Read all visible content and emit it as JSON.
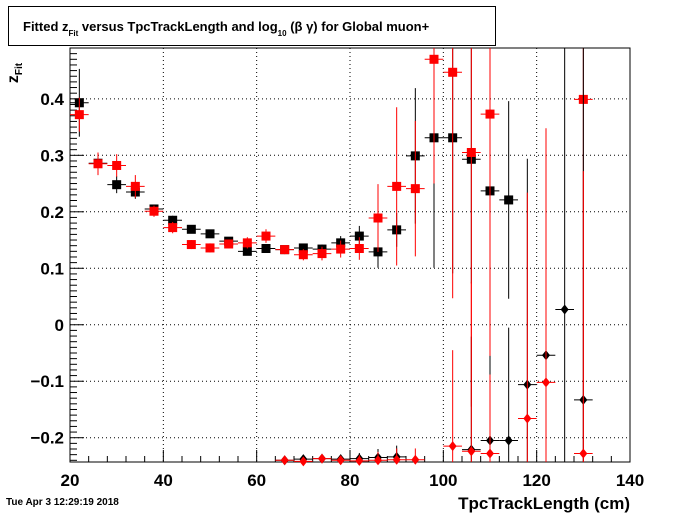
{
  "title": {
    "prefix": "Fitted  z",
    "prefix_sub": "Fit",
    "middle": "  versus TpcTrackLength and log",
    "middle_sub": "10",
    "suffix": " (β γ) for Global muon+"
  },
  "ylabel": {
    "main": "z",
    "sub": "Fit"
  },
  "xlabel": "TpcTrackLength (cm)",
  "timestamp": "Tue Apr  3 12:29:19 2018",
  "colors": {
    "black_series": "#000000",
    "red_series": "#ff0000",
    "grid": "#000000"
  },
  "chart_data": {
    "type": "scatter",
    "grid": true,
    "xlim": [
      20,
      140
    ],
    "ylim": [
      -0.243,
      0.49
    ],
    "x_ticks": [
      20,
      40,
      60,
      80,
      100,
      120,
      140
    ],
    "x_tick_labels": [
      "20",
      "40",
      "60",
      "80",
      "100",
      "120",
      "140"
    ],
    "y_ticks": [
      -0.2,
      -0.1,
      0,
      0.1,
      0.2,
      0.3,
      0.4
    ],
    "y_tick_labels": [
      "−0.2",
      "−0.1",
      "0",
      "0.1",
      "0.2",
      "0.3",
      "0.4"
    ],
    "series": [
      {
        "color": "#000000",
        "marker": "square",
        "points": [
          {
            "x": 22,
            "y": 0.393,
            "err": 0.06
          },
          {
            "x": 26,
            "y": 0.286,
            "err": 0.01
          },
          {
            "x": 30,
            "y": 0.248,
            "err": 0.015
          },
          {
            "x": 34,
            "y": 0.235,
            "err": 0.012
          },
          {
            "x": 38,
            "y": 0.205,
            "err": 0.008
          },
          {
            "x": 42,
            "y": 0.185,
            "err": 0.008
          },
          {
            "x": 46,
            "y": 0.169,
            "err": 0.006
          },
          {
            "x": 50,
            "y": 0.161,
            "err": 0.006
          },
          {
            "x": 54,
            "y": 0.148,
            "err": 0.006
          },
          {
            "x": 58,
            "y": 0.13,
            "err": 0.007
          },
          {
            "x": 62,
            "y": 0.135,
            "err": 0.007
          },
          {
            "x": 66,
            "y": 0.133,
            "err": 0.007
          },
          {
            "x": 70,
            "y": 0.136,
            "err": 0.007
          },
          {
            "x": 74,
            "y": 0.134,
            "err": 0.008
          },
          {
            "x": 78,
            "y": 0.145,
            "err": 0.012
          },
          {
            "x": 82,
            "y": 0.157,
            "err": 0.018
          },
          {
            "x": 86,
            "y": 0.129,
            "err": 0.028
          },
          {
            "x": 90,
            "y": 0.168,
            "err": 0.03
          },
          {
            "x": 94,
            "y": 0.299,
            "err": 0.12
          },
          {
            "x": 98,
            "y": 0.331,
            "err": 0.23
          },
          {
            "x": 102,
            "y": 0.331,
            "err": 0.24
          },
          {
            "x": 106,
            "y": 0.293,
            "err": 0.22
          },
          {
            "x": 110,
            "y": 0.237,
            "err": 0.13
          },
          {
            "x": 114,
            "y": 0.221,
            "err": 0.175
          }
        ]
      },
      {
        "color": "#ff0000",
        "marker": "square",
        "points": [
          {
            "x": 22,
            "y": 0.372,
            "err": 0.03
          },
          {
            "x": 26,
            "y": 0.285,
            "err": 0.02
          },
          {
            "x": 30,
            "y": 0.282,
            "err": 0.02
          },
          {
            "x": 34,
            "y": 0.245,
            "err": 0.02
          },
          {
            "x": 38,
            "y": 0.201,
            "err": 0.01
          },
          {
            "x": 42,
            "y": 0.172,
            "err": 0.01
          },
          {
            "x": 46,
            "y": 0.142,
            "err": 0.008
          },
          {
            "x": 50,
            "y": 0.136,
            "err": 0.008
          },
          {
            "x": 54,
            "y": 0.143,
            "err": 0.008
          },
          {
            "x": 58,
            "y": 0.145,
            "err": 0.01
          },
          {
            "x": 62,
            "y": 0.157,
            "err": 0.012
          },
          {
            "x": 66,
            "y": 0.133,
            "err": 0.008
          },
          {
            "x": 70,
            "y": 0.124,
            "err": 0.01
          },
          {
            "x": 74,
            "y": 0.126,
            "err": 0.012
          },
          {
            "x": 78,
            "y": 0.134,
            "err": 0.015
          },
          {
            "x": 82,
            "y": 0.135,
            "err": 0.02
          },
          {
            "x": 86,
            "y": 0.189,
            "err": 0.06
          },
          {
            "x": 90,
            "y": 0.245,
            "err": 0.14
          },
          {
            "x": 94,
            "y": 0.241,
            "err": 0.12
          },
          {
            "x": 98,
            "y": 0.47,
            "err": 0.22
          },
          {
            "x": 102,
            "y": 0.447,
            "err": 0.4
          },
          {
            "x": 106,
            "y": 0.305,
            "err": 0.45
          },
          {
            "x": 110,
            "y": 0.373,
            "err": 0.6
          },
          {
            "x": 130,
            "y": 0.399,
            "err": 0.7
          }
        ]
      },
      {
        "color": "#000000",
        "marker": "diamond",
        "points": [
          {
            "x": 66,
            "y": -0.24,
            "err": 0.003
          },
          {
            "x": 70,
            "y": -0.238,
            "err": 0.005
          },
          {
            "x": 74,
            "y": -0.237,
            "err": 0.005
          },
          {
            "x": 78,
            "y": -0.238,
            "err": 0.008
          },
          {
            "x": 82,
            "y": -0.237,
            "err": 0.01
          },
          {
            "x": 86,
            "y": -0.235,
            "err": 0.015
          },
          {
            "x": 90,
            "y": -0.234,
            "err": 0.02
          },
          {
            "x": 106,
            "y": -0.221,
            "err": 0.2
          },
          {
            "x": 110,
            "y": -0.205,
            "err": 0.15
          },
          {
            "x": 114,
            "y": -0.205,
            "err": 0.2
          },
          {
            "x": 118,
            "y": -0.106,
            "err": 0.4
          },
          {
            "x": 122,
            "y": -0.054,
            "err": 0.4
          },
          {
            "x": 126,
            "y": 0.027,
            "err": 0.6
          },
          {
            "x": 130,
            "y": -0.133,
            "err": 0.7
          }
        ]
      },
      {
        "color": "#ff0000",
        "marker": "diamond",
        "points": [
          {
            "x": 66,
            "y": -0.24,
            "err": 0.003
          },
          {
            "x": 70,
            "y": -0.242,
            "err": 0.005
          },
          {
            "x": 74,
            "y": -0.237,
            "err": 0.005
          },
          {
            "x": 78,
            "y": -0.24,
            "err": 0.008
          },
          {
            "x": 82,
            "y": -0.241,
            "err": 0.01
          },
          {
            "x": 86,
            "y": -0.24,
            "err": 0.015
          },
          {
            "x": 90,
            "y": -0.239,
            "err": 0.02
          },
          {
            "x": 94,
            "y": -0.239,
            "err": 0.02
          },
          {
            "x": 102,
            "y": -0.215,
            "err": 0.17
          },
          {
            "x": 106,
            "y": -0.224,
            "err": 0.3
          },
          {
            "x": 110,
            "y": -0.228,
            "err": 0.14
          },
          {
            "x": 118,
            "y": -0.166,
            "err": 0.4
          },
          {
            "x": 122,
            "y": -0.102,
            "err": 0.45
          },
          {
            "x": 130,
            "y": -0.228,
            "err": 0.5
          }
        ]
      }
    ]
  }
}
